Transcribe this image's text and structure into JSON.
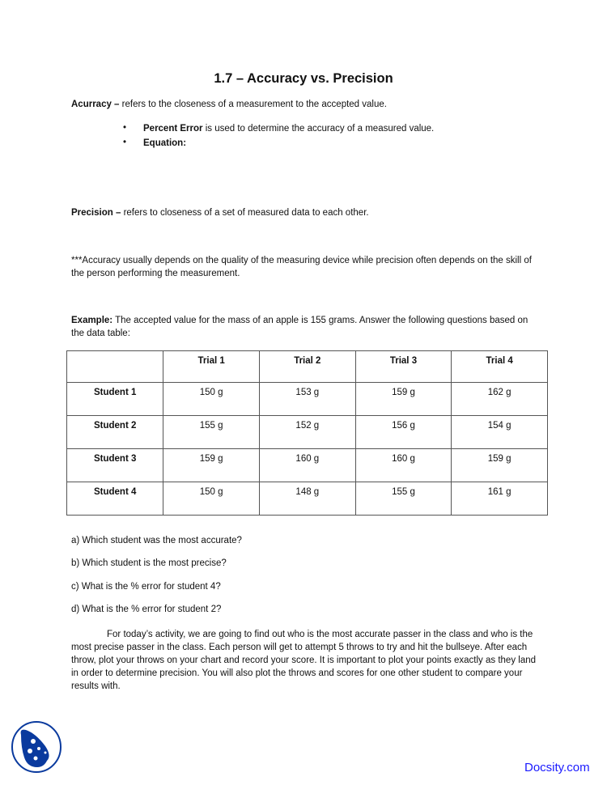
{
  "title": "1.7 – Accuracy vs. Precision",
  "accuracy": {
    "term": "Acurracy –",
    "definition": " refers to the closeness of a measurement to the accepted value."
  },
  "bullets": [
    {
      "bold": "Percent Error",
      "text": " is used to determine the accuracy of a measured value."
    },
    {
      "bold": "Equation:",
      "text": ""
    }
  ],
  "precision": {
    "term": "Precision –",
    "definition": " refers to closeness of a set of measured data to each other."
  },
  "note": "***Accuracy usually depends on the quality of the measuring device while precision often depends on the skill of the person performing the measurement.",
  "example": {
    "label": "Example:",
    "text": " The accepted value for the mass of an apple is 155 grams.  Answer the following questions based on the data table:"
  },
  "table": {
    "headers": [
      "",
      "Trial 1",
      "Trial 2",
      "Trial 3",
      "Trial 4"
    ],
    "rows": [
      [
        "Student 1",
        "150 g",
        "153 g",
        "159 g",
        "162 g"
      ],
      [
        "Student 2",
        "155 g",
        "152 g",
        "156 g",
        "154 g"
      ],
      [
        "Student 3",
        "159 g",
        "160 g",
        "160 g",
        "159 g"
      ],
      [
        "Student 4",
        "150 g",
        "148 g",
        "155 g",
        "161 g"
      ]
    ]
  },
  "questions": [
    "a) Which student was the most accurate?",
    "b) Which student is the most precise?",
    "c) What is the % error for student 4?",
    "d) What is the % error for student 2?"
  ],
  "activity": "For today’s activity, we are going to find out who is the most accurate passer in the class and who is the most precise passer in the class.  Each person will get to attempt 5 throws to try and hit the bullseye.  After each throw, plot your throws on your chart and record your score.  It is important to plot your points exactly as they land in order to determine precision.  You will also plot the throws and scores for one other student to compare your results with.",
  "footer": {
    "logo": "docsity-logo",
    "brand": "Docsity.com",
    "brand_color": "#1a1aff"
  }
}
